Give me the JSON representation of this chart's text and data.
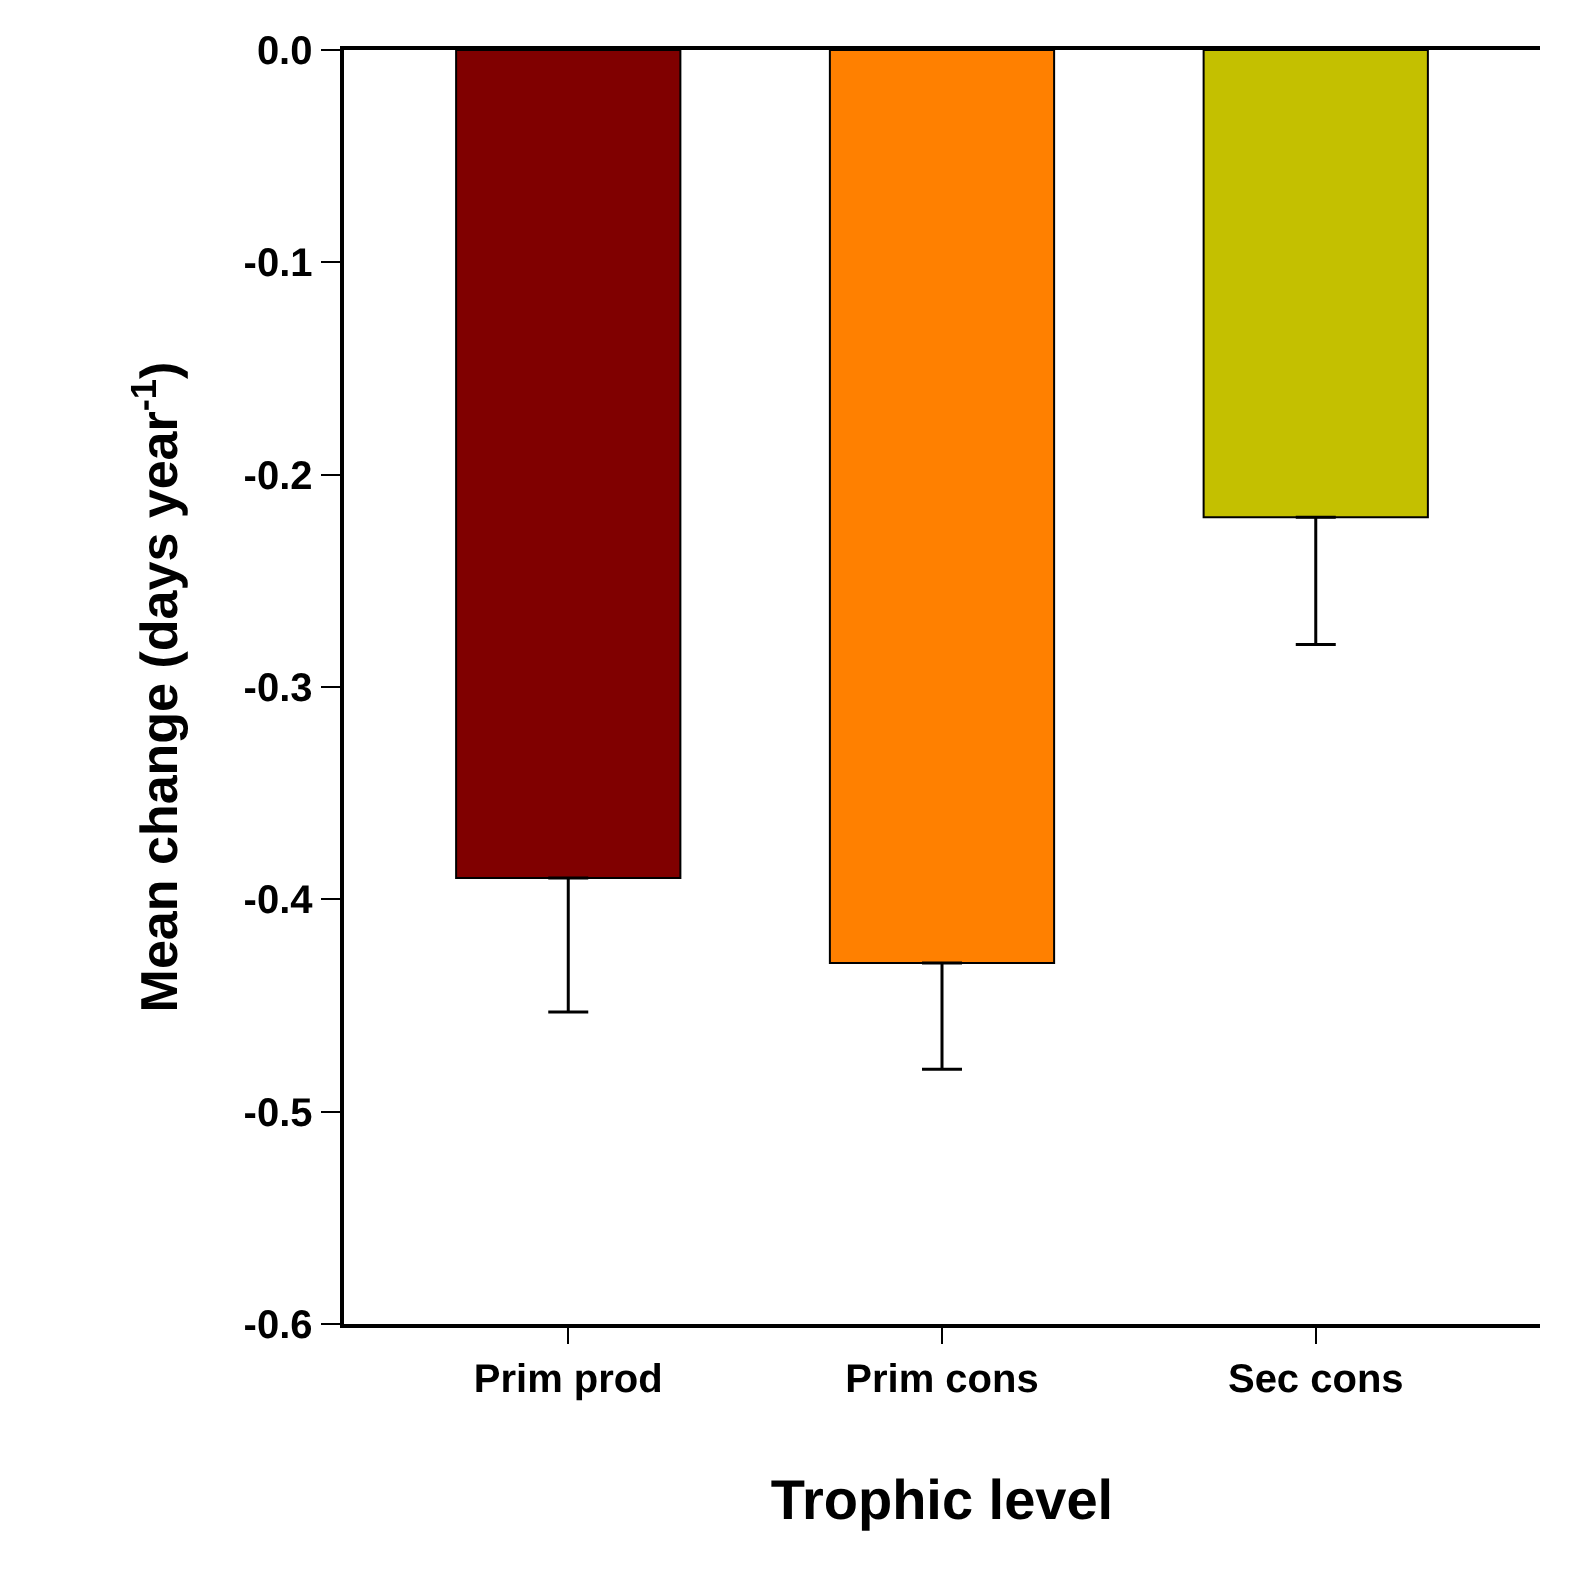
{
  "chart_data": {
    "type": "bar",
    "xlabel": "Trophic level",
    "ylabel": "Mean change (days year$^{-1}$)",
    "categories": [
      "Prim prod",
      "Prim cons",
      "Sec cons"
    ],
    "values": [
      -0.39,
      -0.43,
      -0.22
    ],
    "colors": [
      "#800000",
      "#ff8000",
      "#c4c000"
    ],
    "errors": [
      [
        -0.453,
        -0.39
      ],
      [
        -0.48,
        -0.43
      ],
      [
        -0.28,
        -0.22
      ]
    ],
    "ylim": [
      -0.6,
      0.0
    ],
    "yticks": [
      {
        "value": -0.6,
        "label": "-0.6"
      },
      {
        "value": -0.5,
        "label": "-0.5"
      },
      {
        "value": -0.4,
        "label": "-0.4"
      },
      {
        "value": -0.3,
        "label": "-0.3"
      },
      {
        "value": -0.2,
        "label": "-0.2"
      },
      {
        "value": -0.1,
        "label": "-0.1"
      },
      {
        "value": 0.0,
        "label": "0.0"
      }
    ]
  }
}
